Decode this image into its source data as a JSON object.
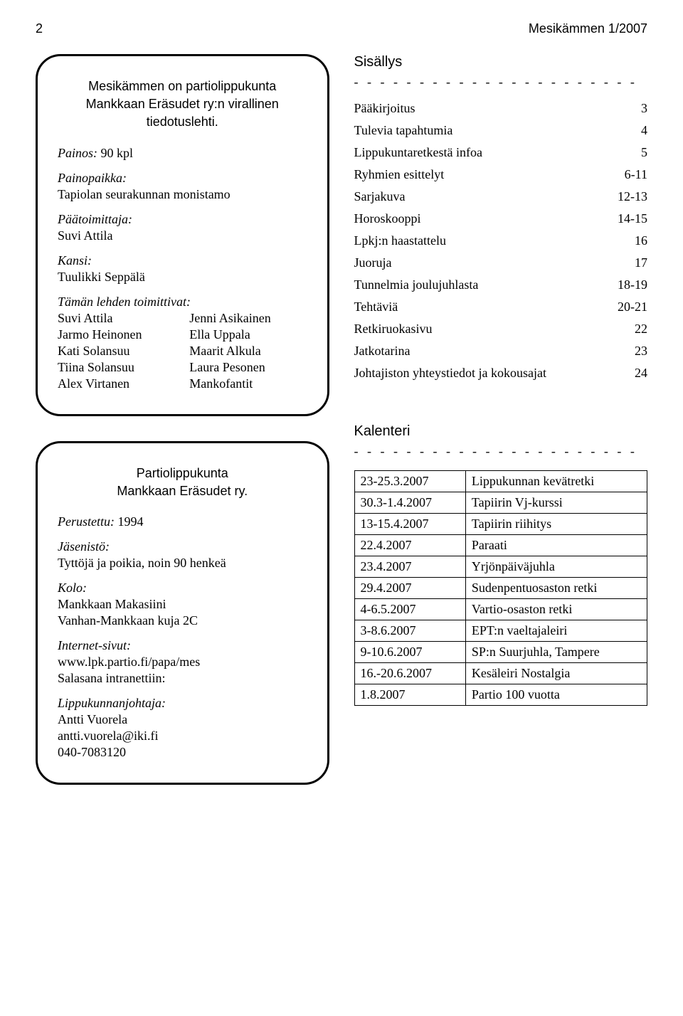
{
  "header": {
    "page_num": "2",
    "issue": "Mesikämmen 1/2007"
  },
  "box1": {
    "title_line1": "Mesikämmen on partiolippukunta",
    "title_line2": "Mankkaan Eräsudet ry:n virallinen",
    "title_line3": "tiedotuslehti.",
    "painos_label": "Painos:",
    "painos_value": "90 kpl",
    "painopaikka_label": "Painopaikka:",
    "painopaikka_value": "Tapiolan seurakunnan monistamo",
    "paatoimittaja_label": "Päätoimittaja:",
    "paatoimittaja_value": "Suvi Attila",
    "kansi_label": "Kansi:",
    "kansi_value": "Tuulikki Seppälä",
    "toimittivat_label": "Tämän lehden toimittivat:",
    "left_names": [
      "Suvi Attila",
      "Jarmo Heinonen",
      "Kati Solansuu",
      "Tiina Solansuu",
      "Alex Virtanen"
    ],
    "right_names": [
      "Jenni Asikainen",
      "Ella Uppala",
      "Maarit Alkula",
      "Laura Pesonen",
      "Mankofantit"
    ]
  },
  "box2": {
    "title_line1": "Partiolippukunta",
    "title_line2": "Mankkaan Eräsudet ry.",
    "perustettu_label": "Perustettu:",
    "perustettu_value": "1994",
    "jasenisto_label": "Jäsenistö:",
    "jasenisto_value": "Tyttöjä ja poikia, noin 90 henkeä",
    "kolo_label": "Kolo:",
    "kolo_value1": "Mankkaan Makasiini",
    "kolo_value2": "Vanhan-Mankkaan kuja 2C",
    "internet_label": "Internet-sivut:",
    "internet_value": "www.lpk.partio.fi/papa/mes",
    "salasana_label": "Salasana intranettiin:",
    "johtaja_label": "Lippukunnanjohtaja:",
    "johtaja_name": "Antti Vuorela",
    "johtaja_email": "antti.vuorela@iki.fi",
    "johtaja_phone": "040-7083120"
  },
  "sisallys": {
    "heading": "Sisällys",
    "dashes": "- - - - - - - - - - - - - - - - - - - - - -",
    "items": [
      {
        "label": "Pääkirjoitus",
        "page": "3"
      },
      {
        "label": "Tulevia tapahtumia",
        "page": "4"
      },
      {
        "label": "Lippukuntaretkestä infoa",
        "page": "5"
      },
      {
        "label": "Ryhmien esittelyt",
        "page": "6-11"
      },
      {
        "label": "Sarjakuva",
        "page": "12-13"
      },
      {
        "label": "Horoskooppi",
        "page": "14-15"
      },
      {
        "label": "Lpkj:n haastattelu",
        "page": "16"
      },
      {
        "label": "Juoruja",
        "page": "17"
      },
      {
        "label": "Tunnelmia joulujuhlasta",
        "page": "18-19"
      },
      {
        "label": "Tehtäviä",
        "page": "20-21"
      },
      {
        "label": "Retkiruokasivu",
        "page": "22"
      },
      {
        "label": "Jatkotarina",
        "page": "23"
      },
      {
        "label": "Johtajiston yhteystiedot ja kokousajat",
        "page": "24"
      }
    ]
  },
  "kalenteri": {
    "heading": "Kalenteri",
    "dashes": "- - - - - - - - - - - - - - - - - - - - - -",
    "rows": [
      {
        "date": "23-25.3.2007",
        "event": "Lippukunnan kevätretki"
      },
      {
        "date": "30.3-1.4.2007",
        "event": "Tapiirin Vj-kurssi"
      },
      {
        "date": "13-15.4.2007",
        "event": "Tapiirin riihitys"
      },
      {
        "date": "22.4.2007",
        "event": "Paraati"
      },
      {
        "date": "23.4.2007",
        "event": "Yrjönpäiväjuhla"
      },
      {
        "date": "29.4.2007",
        "event": "Sudenpentuosaston retki"
      },
      {
        "date": "4-6.5.2007",
        "event": "Vartio-osaston retki"
      },
      {
        "date": "3-8.6.2007",
        "event": "EPT:n vaeltajaleiri"
      },
      {
        "date": "9-10.6.2007",
        "event": "SP:n Suurjuhla, Tampere"
      },
      {
        "date": "16.-20.6.2007",
        "event": "Kesäleiri Nostalgia"
      },
      {
        "date": "1.8.2007",
        "event": "Partio 100 vuotta"
      }
    ]
  }
}
